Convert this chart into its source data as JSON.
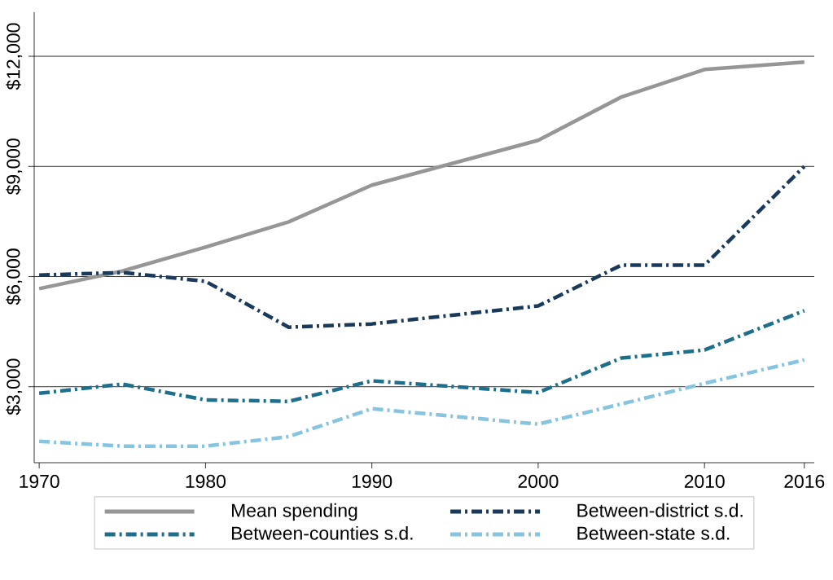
{
  "chart_data": {
    "type": "line",
    "x": [
      1970,
      1975,
      1980,
      1985,
      1990,
      2000,
      2005,
      2010,
      2016
    ],
    "series": [
      {
        "name": "Mean spending",
        "color": "#969696",
        "line_style": "solid",
        "values": [
          5670,
          6150,
          6800,
          7490,
          8490,
          9710,
          10890,
          11640,
          11840
        ]
      },
      {
        "name": "Between-district s.d.",
        "color": "#1a3a5c",
        "line_style": "dashdot",
        "values": [
          6040,
          6110,
          5870,
          4620,
          4710,
          5200,
          6310,
          6310,
          9000
        ]
      },
      {
        "name": "Between-counties s.d.",
        "color": "#1e6f8c",
        "line_style": "dashdot",
        "values": [
          2820,
          3070,
          2640,
          2600,
          3160,
          2840,
          3780,
          4000,
          5070
        ]
      },
      {
        "name": "Between-state s.d.",
        "color": "#87c4e0",
        "line_style": "dashdot",
        "values": [
          1510,
          1380,
          1380,
          1640,
          2400,
          1980,
          2530,
          3090,
          3730
        ]
      }
    ],
    "xlim": [
      1969.7,
      2016.6
    ],
    "ylim": [
      930,
      13200
    ],
    "xticks": [
      1970,
      1980,
      1990,
      2000,
      2010,
      2016
    ],
    "yticks": [
      {
        "value": 3000,
        "label": "$3,000"
      },
      {
        "value": 6000,
        "label": "$6,000"
      },
      {
        "value": 9000,
        "label": "$9,000"
      },
      {
        "value": 12000,
        "label": "$12,000"
      }
    ],
    "grid": "y",
    "legend": "bottom",
    "marker": "none"
  }
}
